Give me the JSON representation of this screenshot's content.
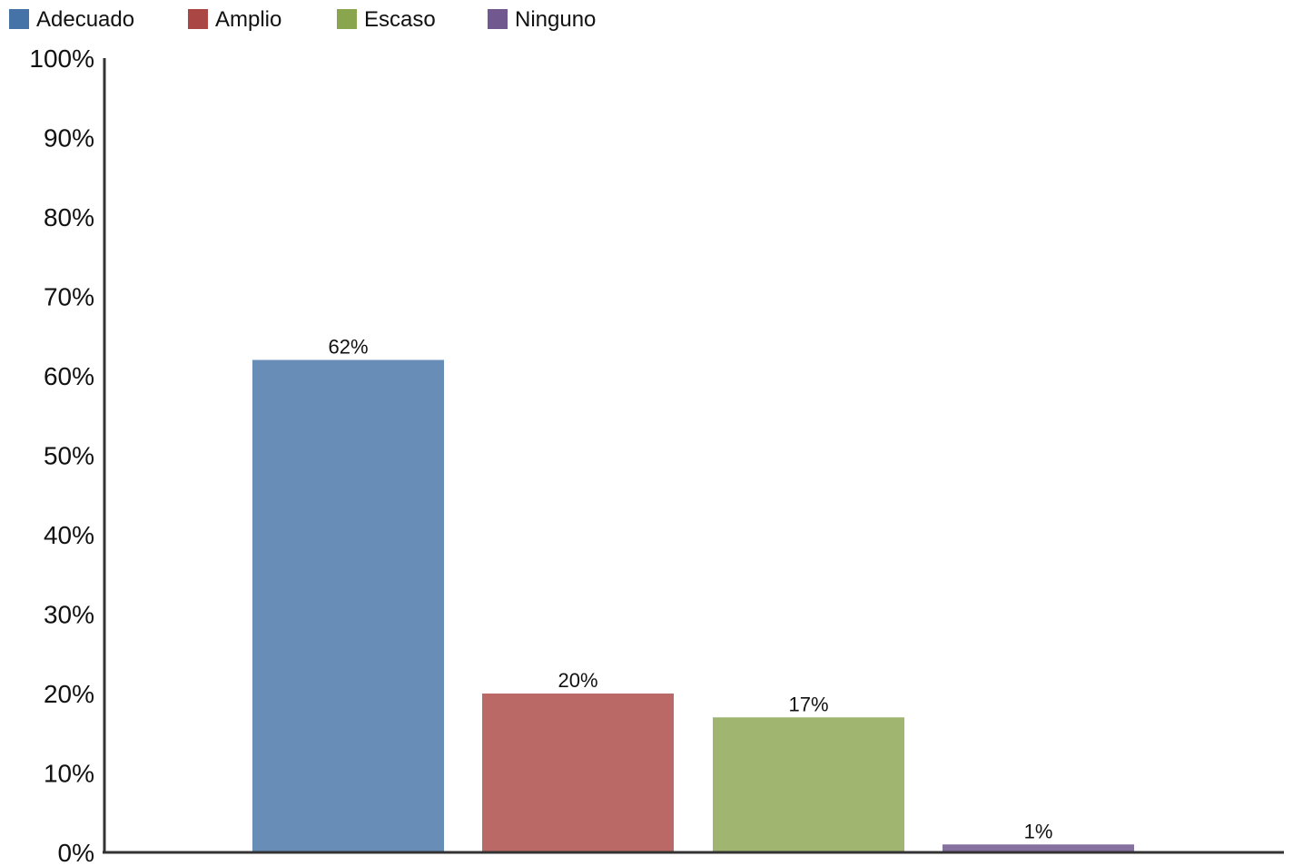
{
  "chart_data": {
    "type": "bar",
    "categories": [
      "Adecuado",
      "Amplio",
      "Escaso",
      "Ninguno"
    ],
    "values": [
      62,
      20,
      17,
      1
    ],
    "data_labels": [
      "62%",
      "20%",
      "17%",
      "1%"
    ],
    "colors": [
      "#688DB7",
      "#BA6966",
      "#A0B670",
      "#8670A0"
    ],
    "legend_colors": [
      "#4572A7",
      "#AA4643",
      "#89A54E",
      "#71588F"
    ],
    "legend_position": "top-left",
    "ylim": [
      0,
      100
    ],
    "y_ticks": [
      "0%",
      "10%",
      "20%",
      "30%",
      "40%",
      "50%",
      "60%",
      "70%",
      "80%",
      "90%",
      "100%"
    ],
    "grid": false
  }
}
